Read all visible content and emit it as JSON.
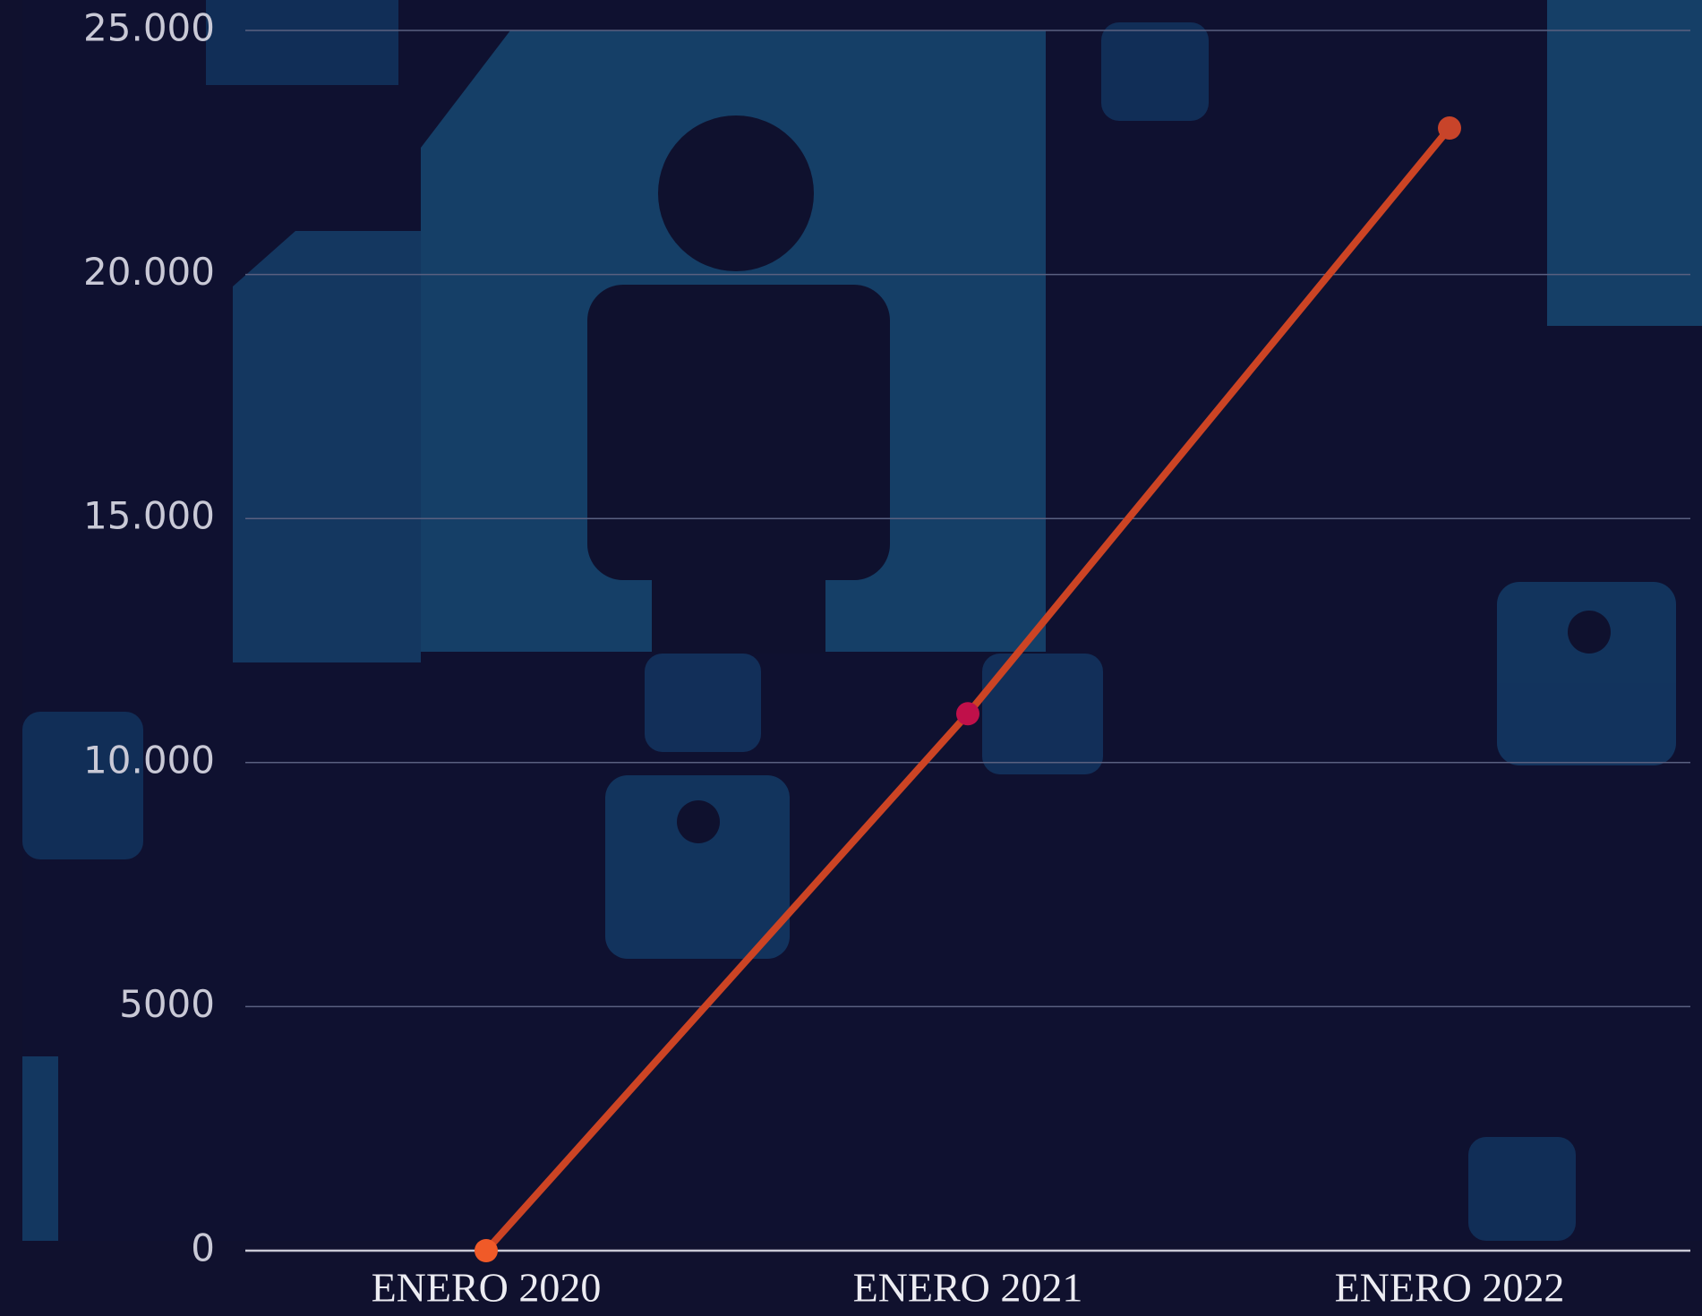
{
  "chart_data": {
    "type": "line",
    "categories": [
      "ENERO 2020",
      "ENERO 2021",
      "ENERO 2022"
    ],
    "series": [
      {
        "color": "#cc4424",
        "values": [
          0,
          11000,
          23000
        ]
      }
    ],
    "point_colors": [
      "#f05a28",
      "#c0104a",
      "#c8442a"
    ],
    "ylim": [
      0,
      25000
    ],
    "yticks": [
      0,
      5000,
      {
        "value": 10000,
        "label": "10.000"
      },
      {
        "value": 15000,
        "label": "15.000"
      },
      {
        "value": 20000,
        "label": "20.000"
      },
      {
        "value": 25000,
        "label": "25.000"
      }
    ],
    "grid": true
  }
}
